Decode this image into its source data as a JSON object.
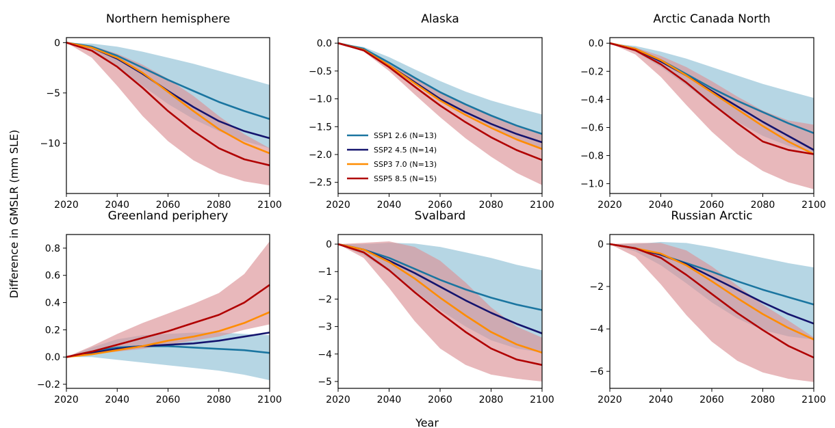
{
  "figure": {
    "ylabel": "Difference in GMSLR (mm SLE)",
    "xlabel": "Year"
  },
  "legend": {
    "location": "lower-left of Alaska panel",
    "entries": [
      {
        "label": "SSP1 2.6 (N=13)",
        "color": "#1a75a0"
      },
      {
        "label": "SSP2 4.5 (N=14)",
        "color": "#14146e"
      },
      {
        "label": "SSP3 7.0 (N=13)",
        "color": "#ff8c00"
      },
      {
        "label": "SSP5 8.5 (N=15)",
        "color": "#b00000"
      }
    ]
  },
  "colors": {
    "band_ssp1": "#a9cfdf",
    "band_ssp5": "#dc9296"
  },
  "chart_data": [
    {
      "type": "line",
      "title": "Northern hemisphere",
      "xlim": [
        2020,
        2100
      ],
      "ylim": [
        -15,
        0.5
      ],
      "xticks": [
        2020,
        2040,
        2060,
        2080,
        2100
      ],
      "yticks": [
        0,
        -5,
        -10
      ],
      "x": [
        2020,
        2030,
        2040,
        2050,
        2060,
        2070,
        2080,
        2090,
        2100
      ],
      "series": [
        {
          "name": "SSP1 2.6 (N=13)",
          "values": [
            0,
            -0.4,
            -1.3,
            -2.5,
            -3.7,
            -4.8,
            -5.9,
            -6.8,
            -7.6
          ]
        },
        {
          "name": "SSP2 4.5 (N=14)",
          "values": [
            0,
            -0.5,
            -1.6,
            -3.1,
            -4.8,
            -6.4,
            -7.8,
            -8.8,
            -9.5
          ]
        },
        {
          "name": "SSP3 7.0 (N=13)",
          "values": [
            0,
            -0.5,
            -1.5,
            -3.0,
            -4.9,
            -6.8,
            -8.6,
            -10.0,
            -11.0
          ]
        },
        {
          "name": "SSP5 8.5 (N=15)",
          "values": [
            0,
            -0.8,
            -2.4,
            -4.5,
            -6.8,
            -8.8,
            -10.5,
            -11.6,
            -12.2
          ]
        }
      ],
      "bands": [
        {
          "name": "SSP1 2.6 range",
          "lower": [
            0,
            -0.7,
            -2.4,
            -4.3,
            -6.1,
            -7.6,
            -8.8,
            -9.8,
            -10.5
          ],
          "upper": [
            0,
            -0.1,
            -0.4,
            -0.9,
            -1.5,
            -2.1,
            -2.8,
            -3.5,
            -4.2
          ]
        },
        {
          "name": "SSP5 8.5 range",
          "lower": [
            0,
            -1.5,
            -4.3,
            -7.3,
            -9.8,
            -11.7,
            -13.0,
            -13.8,
            -14.2
          ],
          "upper": [
            0,
            -0.3,
            -1.1,
            -2.2,
            -3.6,
            -5.3,
            -7.3,
            -9.1,
            -10.5
          ]
        }
      ]
    },
    {
      "type": "line",
      "title": "Alaska",
      "xlim": [
        2020,
        2100
      ],
      "ylim": [
        -2.7,
        0.1
      ],
      "xticks": [
        2020,
        2040,
        2060,
        2080,
        2100
      ],
      "yticks": [
        0.0,
        -0.5,
        -1.0,
        -1.5,
        -2.0,
        -2.5
      ],
      "x": [
        2020,
        2030,
        2040,
        2050,
        2060,
        2070,
        2080,
        2090,
        2100
      ],
      "series": [
        {
          "name": "SSP1 2.6 (N=13)",
          "values": [
            0,
            -0.1,
            -0.35,
            -0.62,
            -0.88,
            -1.1,
            -1.3,
            -1.48,
            -1.63
          ]
        },
        {
          "name": "SSP2 4.5 (N=14)",
          "values": [
            0,
            -0.12,
            -0.4,
            -0.7,
            -1.0,
            -1.24,
            -1.45,
            -1.63,
            -1.78
          ]
        },
        {
          "name": "SSP3 7.0 (N=13)",
          "values": [
            0,
            -0.12,
            -0.4,
            -0.72,
            -1.03,
            -1.29,
            -1.52,
            -1.73,
            -1.9
          ]
        },
        {
          "name": "SSP5 8.5 (N=15)",
          "values": [
            0,
            -0.13,
            -0.43,
            -0.78,
            -1.12,
            -1.42,
            -1.69,
            -1.92,
            -2.1
          ]
        }
      ],
      "bands": [
        {
          "name": "SSP1 2.6 range",
          "lower": [
            0,
            -0.13,
            -0.42,
            -0.73,
            -1.02,
            -1.27,
            -1.5,
            -1.72,
            -1.9
          ],
          "upper": [
            0,
            -0.07,
            -0.25,
            -0.47,
            -0.68,
            -0.87,
            -1.03,
            -1.16,
            -1.28
          ]
        },
        {
          "name": "SSP5 8.5 range",
          "lower": [
            0,
            -0.15,
            -0.5,
            -0.92,
            -1.33,
            -1.71,
            -2.04,
            -2.33,
            -2.55
          ],
          "upper": [
            0,
            -0.1,
            -0.35,
            -0.62,
            -0.88,
            -1.1,
            -1.3,
            -1.48,
            -1.63
          ]
        }
      ]
    },
    {
      "type": "line",
      "title": "Arctic Canada North",
      "xlim": [
        2020,
        2100
      ],
      "ylim": [
        -1.07,
        0.04
      ],
      "xticks": [
        2020,
        2040,
        2060,
        2080,
        2100
      ],
      "yticks": [
        0.0,
        -0.2,
        -0.4,
        -0.6,
        -0.8,
        -1.0
      ],
      "x": [
        2020,
        2030,
        2040,
        2050,
        2060,
        2070,
        2080,
        2090,
        2100
      ],
      "series": [
        {
          "name": "SSP1 2.6 (N=13)",
          "values": [
            0,
            -0.04,
            -0.12,
            -0.22,
            -0.32,
            -0.41,
            -0.49,
            -0.57,
            -0.64
          ]
        },
        {
          "name": "SSP2 4.5 (N=14)",
          "values": [
            0,
            -0.04,
            -0.13,
            -0.23,
            -0.34,
            -0.45,
            -0.56,
            -0.66,
            -0.76
          ]
        },
        {
          "name": "SSP3 7.0 (N=13)",
          "values": [
            0,
            -0.04,
            -0.12,
            -0.23,
            -0.35,
            -0.47,
            -0.59,
            -0.7,
            -0.79
          ]
        },
        {
          "name": "SSP5 8.5 (N=15)",
          "values": [
            0,
            -0.05,
            -0.15,
            -0.28,
            -0.43,
            -0.57,
            -0.7,
            -0.76,
            -0.79
          ]
        }
      ],
      "bands": [
        {
          "name": "SSP1 2.6 range",
          "lower": [
            0,
            -0.06,
            -0.17,
            -0.3,
            -0.44,
            -0.56,
            -0.66,
            -0.73,
            -0.78
          ],
          "upper": [
            0,
            -0.02,
            -0.06,
            -0.11,
            -0.17,
            -0.23,
            -0.29,
            -0.34,
            -0.39
          ]
        },
        {
          "name": "SSP5 8.5 range",
          "lower": [
            0,
            -0.08,
            -0.24,
            -0.44,
            -0.63,
            -0.79,
            -0.91,
            -0.99,
            -1.04
          ],
          "upper": [
            0,
            -0.03,
            -0.09,
            -0.17,
            -0.27,
            -0.38,
            -0.48,
            -0.55,
            -0.58
          ]
        }
      ]
    },
    {
      "type": "line",
      "title": "Greenland periphery",
      "xlim": [
        2020,
        2100
      ],
      "ylim": [
        -0.23,
        0.9
      ],
      "xticks": [
        2020,
        2040,
        2060,
        2080,
        2100
      ],
      "yticks": [
        -0.2,
        0.0,
        0.2,
        0.4,
        0.6,
        0.8
      ],
      "x": [
        2020,
        2030,
        2040,
        2050,
        2060,
        2070,
        2080,
        2090,
        2100
      ],
      "series": [
        {
          "name": "SSP1 2.6 (N=13)",
          "values": [
            0,
            0.04,
            0.07,
            0.08,
            0.08,
            0.07,
            0.06,
            0.05,
            0.03
          ]
        },
        {
          "name": "SSP2 4.5 (N=14)",
          "values": [
            0,
            0.03,
            0.06,
            0.08,
            0.09,
            0.1,
            0.12,
            0.15,
            0.18
          ]
        },
        {
          "name": "SSP3 7.0 (N=13)",
          "values": [
            0,
            0.02,
            0.05,
            0.08,
            0.12,
            0.15,
            0.19,
            0.25,
            0.33
          ]
        },
        {
          "name": "SSP5 8.5 (N=15)",
          "values": [
            0,
            0.04,
            0.09,
            0.14,
            0.19,
            0.25,
            0.31,
            0.4,
            0.53
          ]
        }
      ],
      "bands": [
        {
          "name": "SSP1 2.6 range",
          "lower": [
            0,
            0.0,
            -0.02,
            -0.04,
            -0.06,
            -0.08,
            -0.1,
            -0.13,
            -0.17
          ],
          "upper": [
            0,
            0.07,
            0.13,
            0.16,
            0.17,
            0.18,
            0.18,
            0.17,
            0.16
          ]
        },
        {
          "name": "SSP5 8.5 range",
          "lower": [
            0,
            0.02,
            0.04,
            0.06,
            0.09,
            0.12,
            0.15,
            0.2,
            0.24
          ],
          "upper": [
            0,
            0.08,
            0.17,
            0.25,
            0.32,
            0.39,
            0.47,
            0.61,
            0.85
          ]
        }
      ]
    },
    {
      "type": "line",
      "title": "Svalbard",
      "xlim": [
        2020,
        2100
      ],
      "ylim": [
        -5.25,
        0.35
      ],
      "xticks": [
        2020,
        2040,
        2060,
        2080,
        2100
      ],
      "yticks": [
        0,
        -1,
        -2,
        -3,
        -4,
        -5
      ],
      "x": [
        2020,
        2030,
        2040,
        2050,
        2060,
        2070,
        2080,
        2090,
        2100
      ],
      "series": [
        {
          "name": "SSP1 2.6 (N=13)",
          "values": [
            0,
            -0.2,
            -0.5,
            -0.9,
            -1.3,
            -1.65,
            -1.95,
            -2.2,
            -2.4
          ]
        },
        {
          "name": "SSP2 4.5 (N=14)",
          "values": [
            0,
            -0.2,
            -0.6,
            -1.05,
            -1.55,
            -2.05,
            -2.5,
            -2.9,
            -3.25
          ]
        },
        {
          "name": "SSP3 7.0 (N=13)",
          "values": [
            0,
            -0.2,
            -0.65,
            -1.25,
            -1.95,
            -2.6,
            -3.2,
            -3.65,
            -3.95
          ]
        },
        {
          "name": "SSP5 8.5 (N=15)",
          "values": [
            0,
            -0.3,
            -0.95,
            -1.75,
            -2.5,
            -3.2,
            -3.8,
            -4.2,
            -4.4
          ]
        }
      ],
      "bands": [
        {
          "name": "SSP1 2.6 range",
          "lower": [
            0,
            -0.4,
            -1.0,
            -1.7,
            -2.4,
            -3.0,
            -3.5,
            -3.8,
            -3.95
          ],
          "upper": [
            0,
            0.0,
            0.05,
            0.02,
            -0.1,
            -0.3,
            -0.5,
            -0.75,
            -0.95
          ]
        },
        {
          "name": "SSP5 8.5 range",
          "lower": [
            0,
            -0.5,
            -1.6,
            -2.8,
            -3.8,
            -4.4,
            -4.75,
            -4.9,
            -5.0
          ],
          "upper": [
            0,
            0.05,
            0.1,
            -0.1,
            -0.6,
            -1.4,
            -2.3,
            -3.0,
            -3.4
          ]
        }
      ]
    },
    {
      "type": "line",
      "title": "Russian Arctic",
      "xlim": [
        2020,
        2100
      ],
      "ylim": [
        -6.8,
        0.45
      ],
      "xticks": [
        2020,
        2040,
        2060,
        2080,
        2100
      ],
      "yticks": [
        0,
        -2,
        -4,
        -6
      ],
      "x": [
        2020,
        2030,
        2040,
        2050,
        2060,
        2070,
        2080,
        2090,
        2100
      ],
      "series": [
        {
          "name": "SSP1 2.6 (N=13)",
          "values": [
            0,
            -0.2,
            -0.5,
            -0.9,
            -1.3,
            -1.75,
            -2.15,
            -2.5,
            -2.85
          ]
        },
        {
          "name": "SSP2 4.5 (N=14)",
          "values": [
            0,
            -0.2,
            -0.5,
            -0.95,
            -1.55,
            -2.15,
            -2.75,
            -3.3,
            -3.75
          ]
        },
        {
          "name": "SSP3 7.0 (N=13)",
          "values": [
            0,
            -0.2,
            -0.45,
            -1.0,
            -1.75,
            -2.55,
            -3.3,
            -3.95,
            -4.5
          ]
        },
        {
          "name": "SSP5 8.5 (N=15)",
          "values": [
            0,
            -0.2,
            -0.65,
            -1.45,
            -2.35,
            -3.25,
            -4.05,
            -4.8,
            -5.35
          ]
        }
      ],
      "bands": [
        {
          "name": "SSP1 2.6 range",
          "lower": [
            0,
            -0.35,
            -1.0,
            -1.85,
            -2.75,
            -3.5,
            -4.05,
            -4.35,
            -4.5
          ],
          "upper": [
            0,
            0.0,
            0.1,
            0.05,
            -0.15,
            -0.4,
            -0.65,
            -0.9,
            -1.1
          ]
        },
        {
          "name": "SSP5 8.5 range",
          "lower": [
            0,
            -0.6,
            -1.9,
            -3.35,
            -4.6,
            -5.5,
            -6.05,
            -6.35,
            -6.5
          ],
          "upper": [
            0,
            0.05,
            0.05,
            -0.3,
            -1.05,
            -1.95,
            -2.85,
            -3.6,
            -4.4
          ]
        }
      ]
    }
  ]
}
